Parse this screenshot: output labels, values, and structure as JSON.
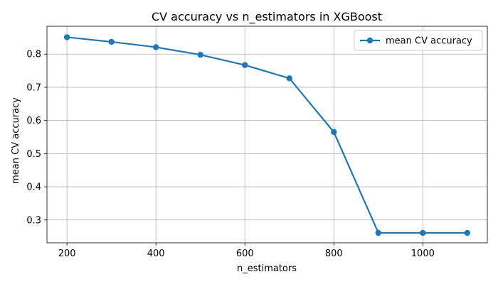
{
  "chart_data": {
    "type": "line",
    "title": "CV accuracy vs n_estimators in XGBoost",
    "xlabel": "n_estimators",
    "ylabel": "mean CV accuracy",
    "x": [
      200,
      300,
      400,
      500,
      600,
      700,
      800,
      900,
      1000,
      1100
    ],
    "xticks": [
      200,
      400,
      600,
      800,
      1000
    ],
    "yticks": [
      0.3,
      0.4,
      0.5,
      0.6,
      0.7,
      0.8
    ],
    "xlim": [
      155,
      1145
    ],
    "ylim": [
      0.231,
      0.884
    ],
    "grid": true,
    "legend_position": "top-right",
    "series": [
      {
        "name": "mean CV accuracy",
        "color": "#1f77b4",
        "marker": "circle",
        "values": [
          0.851,
          0.837,
          0.821,
          0.798,
          0.767,
          0.727,
          0.565,
          0.261,
          0.261,
          0.261
        ]
      }
    ]
  }
}
